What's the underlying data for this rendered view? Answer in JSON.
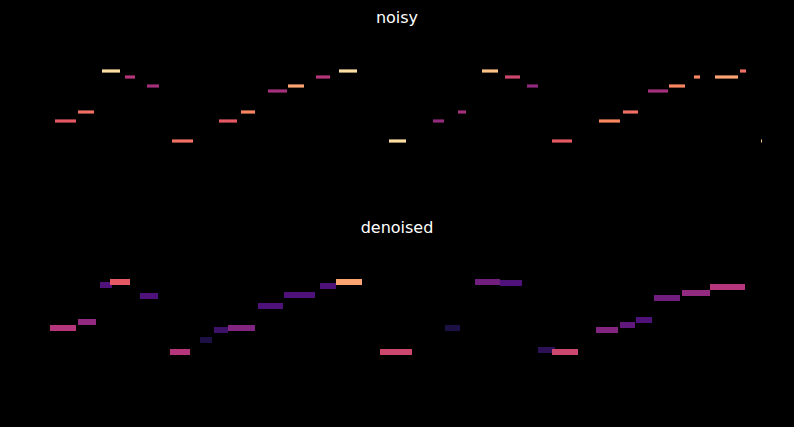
{
  "chart_data": [
    {
      "type": "heatmap",
      "title": "noisy",
      "tick_labels": false,
      "xlim": [
        0,
        794
      ],
      "ylim": [
        0,
        120
      ],
      "clim": [
        0,
        1
      ],
      "segments": [
        {
          "x0": 55,
          "x1": 76,
          "y": 39,
          "v": 0.7
        },
        {
          "x0": 78,
          "x1": 94,
          "y": 48,
          "v": 0.75
        },
        {
          "x0": 102,
          "x1": 120,
          "y": 89,
          "v": 0.95
        },
        {
          "x0": 125,
          "x1": 135,
          "y": 83,
          "v": 0.6
        },
        {
          "x0": 147,
          "x1": 159,
          "y": 74,
          "v": 0.55
        },
        {
          "x0": 172,
          "x1": 193,
          "y": 19,
          "v": 0.75
        },
        {
          "x0": 219,
          "x1": 237,
          "y": 39,
          "v": 0.7
        },
        {
          "x0": 241,
          "x1": 255,
          "y": 48,
          "v": 0.8
        },
        {
          "x0": 268,
          "x1": 287,
          "y": 69,
          "v": 0.55
        },
        {
          "x0": 288,
          "x1": 304,
          "y": 74,
          "v": 0.85
        },
        {
          "x0": 316,
          "x1": 330,
          "y": 83,
          "v": 0.6
        },
        {
          "x0": 339,
          "x1": 357,
          "y": 89,
          "v": 0.95
        },
        {
          "x0": 389,
          "x1": 406,
          "y": 19,
          "v": 0.95
        },
        {
          "x0": 433,
          "x1": 444,
          "y": 39,
          "v": 0.5
        },
        {
          "x0": 458,
          "x1": 466,
          "y": 48,
          "v": 0.55
        },
        {
          "x0": 482,
          "x1": 498,
          "y": 89,
          "v": 0.9
        },
        {
          "x0": 505,
          "x1": 520,
          "y": 83,
          "v": 0.65
        },
        {
          "x0": 527,
          "x1": 538,
          "y": 74,
          "v": 0.5
        },
        {
          "x0": 552,
          "x1": 572,
          "y": 19,
          "v": 0.7
        },
        {
          "x0": 599,
          "x1": 620,
          "y": 39,
          "v": 0.8
        },
        {
          "x0": 623,
          "x1": 638,
          "y": 48,
          "v": 0.75
        },
        {
          "x0": 648,
          "x1": 668,
          "y": 69,
          "v": 0.55
        },
        {
          "x0": 669,
          "x1": 685,
          "y": 74,
          "v": 0.8
        },
        {
          "x0": 694,
          "x1": 700,
          "y": 83,
          "v": 0.8
        },
        {
          "x0": 715,
          "x1": 738,
          "y": 83,
          "v": 0.85
        },
        {
          "x0": 740,
          "x1": 746,
          "y": 89,
          "v": 0.75
        },
        {
          "x0": 761,
          "x1": 762,
          "y": 19,
          "v": 0.9
        }
      ]
    },
    {
      "type": "heatmap",
      "title": "denoised",
      "tick_labels": false,
      "xlim": [
        0,
        794
      ],
      "ylim": [
        0,
        160
      ],
      "clim": [
        0,
        1
      ],
      "segments": [
        {
          "x0": 50,
          "x1": 76,
          "y": 92,
          "v": 0.6
        },
        {
          "x0": 78,
          "x1": 96,
          "y": 98,
          "v": 0.5
        },
        {
          "x0": 100,
          "x1": 112,
          "y": 135,
          "v": 0.3
        },
        {
          "x0": 110,
          "x1": 130,
          "y": 138,
          "v": 0.7
        },
        {
          "x0": 140,
          "x1": 158,
          "y": 124,
          "v": 0.3
        },
        {
          "x0": 170,
          "x1": 190,
          "y": 68,
          "v": 0.6
        },
        {
          "x0": 200,
          "x1": 212,
          "y": 80,
          "v": 0.15
        },
        {
          "x0": 214,
          "x1": 228,
          "y": 90,
          "v": 0.25
        },
        {
          "x0": 228,
          "x1": 255,
          "y": 92,
          "v": 0.45
        },
        {
          "x0": 258,
          "x1": 283,
          "y": 114,
          "v": 0.3
        },
        {
          "x0": 284,
          "x1": 315,
          "y": 125,
          "v": 0.3
        },
        {
          "x0": 320,
          "x1": 336,
          "y": 134,
          "v": 0.3
        },
        {
          "x0": 336,
          "x1": 362,
          "y": 138,
          "v": 0.85
        },
        {
          "x0": 380,
          "x1": 412,
          "y": 68,
          "v": 0.65
        },
        {
          "x0": 445,
          "x1": 460,
          "y": 92,
          "v": 0.15
        },
        {
          "x0": 475,
          "x1": 500,
          "y": 138,
          "v": 0.4
        },
        {
          "x0": 500,
          "x1": 522,
          "y": 137,
          "v": 0.3
        },
        {
          "x0": 538,
          "x1": 555,
          "y": 70,
          "v": 0.2
        },
        {
          "x0": 552,
          "x1": 578,
          "y": 68,
          "v": 0.65
        },
        {
          "x0": 596,
          "x1": 618,
          "y": 90,
          "v": 0.45
        },
        {
          "x0": 620,
          "x1": 635,
          "y": 95,
          "v": 0.35
        },
        {
          "x0": 636,
          "x1": 652,
          "y": 100,
          "v": 0.3
        },
        {
          "x0": 654,
          "x1": 680,
          "y": 122,
          "v": 0.4
        },
        {
          "x0": 682,
          "x1": 710,
          "y": 127,
          "v": 0.5
        },
        {
          "x0": 710,
          "x1": 745,
          "y": 133,
          "v": 0.6
        }
      ]
    }
  ]
}
